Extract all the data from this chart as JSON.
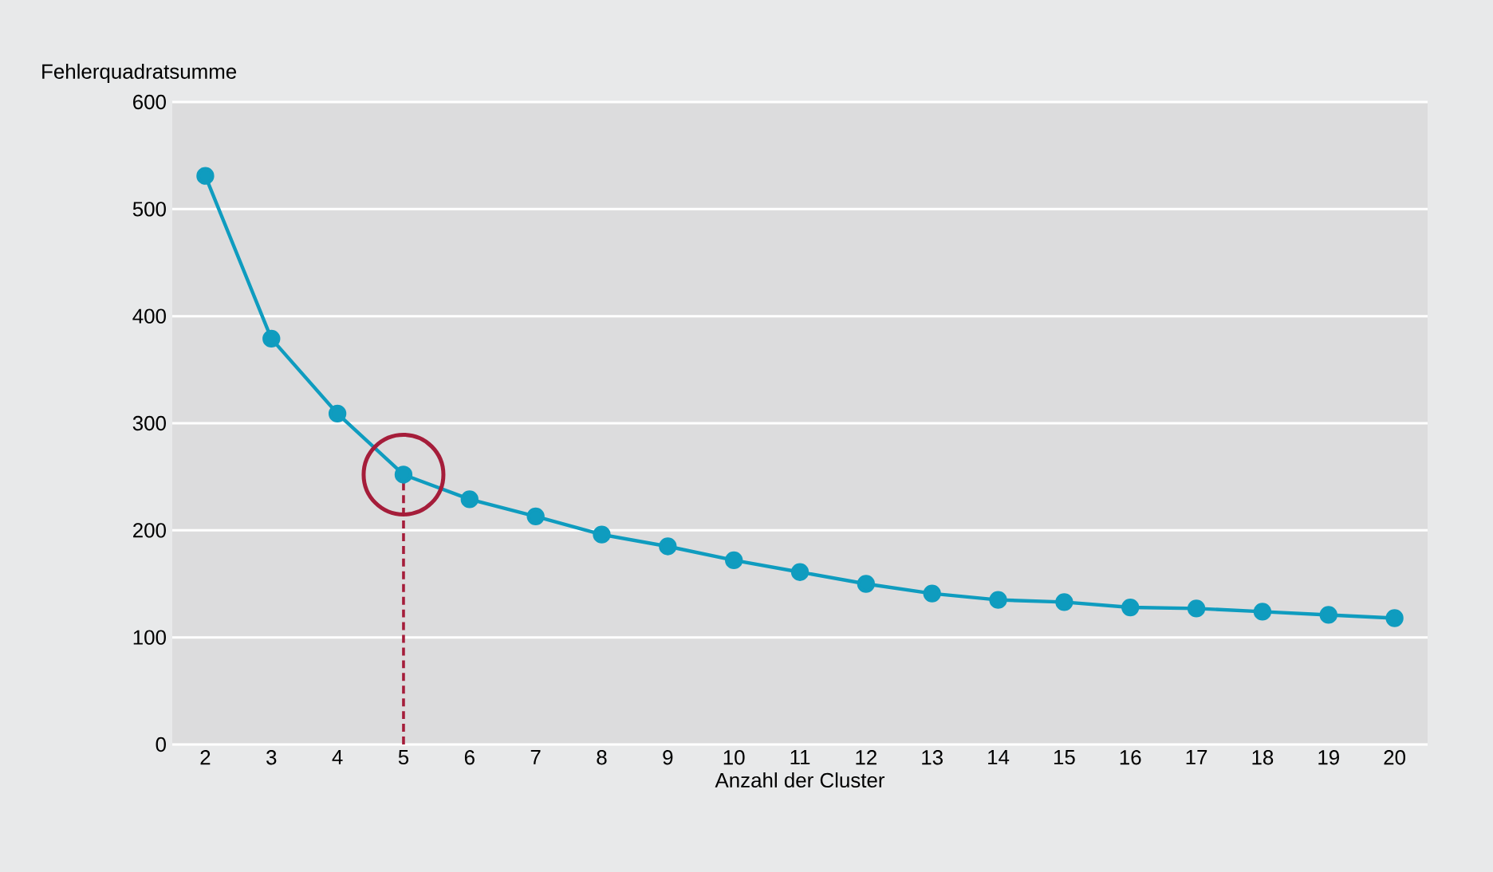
{
  "chart_data": {
    "type": "line",
    "ylabel": "Fehlerquadratsumme",
    "xlabel": "Anzahl der Cluster",
    "x": [
      2,
      3,
      4,
      5,
      6,
      7,
      8,
      9,
      10,
      11,
      12,
      13,
      14,
      15,
      16,
      17,
      18,
      19,
      20
    ],
    "series": [
      {
        "color": "#0f9cbf",
        "values": [
          531,
          379,
          309,
          252,
          229,
          213,
          196,
          185,
          172,
          161,
          150,
          141,
          135,
          133,
          128,
          127,
          124,
          121,
          118
        ]
      }
    ],
    "xlim": [
      1.5,
      20.5
    ],
    "xticks": [
      2,
      3,
      4,
      5,
      6,
      7,
      8,
      9,
      10,
      11,
      12,
      13,
      14,
      15,
      16,
      17,
      18,
      19,
      20
    ],
    "ylim": [
      0,
      600
    ],
    "yticks": [
      0,
      100,
      200,
      300,
      400,
      500,
      600
    ],
    "grid": "y",
    "marker": "circle",
    "line_style": "solid",
    "ref_lines": [
      {
        "axis": "x",
        "value": 5,
        "color": "#a51d3a",
        "line_style": "dashed"
      }
    ]
  }
}
